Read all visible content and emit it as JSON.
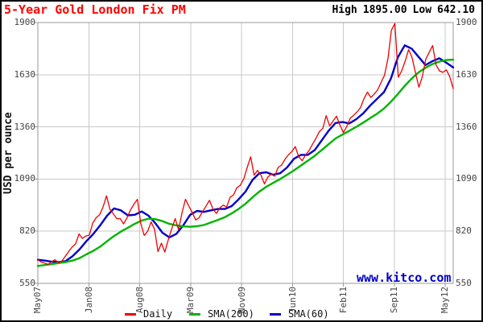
{
  "header": {
    "title": "5-Year Gold London Fix PM",
    "high_label": "High",
    "high_value": "1895.00",
    "low_label": "Low",
    "low_value": "642.10"
  },
  "watermark": "www.kitco.com",
  "colors": {
    "title": "#FF0000",
    "watermark": "#0000CC",
    "grid": "#C9C9C9",
    "frame": "#999999",
    "tick_text": "#444444",
    "stats_text": "#000000"
  },
  "chart_data": {
    "type": "line",
    "title": "5-Year Gold London Fix PM",
    "ylabel": "USD per ounce",
    "xlabel": "",
    "ylim": [
      550,
      1900
    ],
    "yticks": [
      1900,
      1630,
      1360,
      1090,
      820,
      550
    ],
    "xticklabels": [
      "May07",
      "Jan08",
      "Aug08",
      "Mar09",
      "Nov09",
      "Jun10",
      "Feb11",
      "Sep11",
      "May12"
    ],
    "grid": true,
    "legend_position": "bottom",
    "high": 1895.0,
    "low": 642.1,
    "series": [
      {
        "name": "Daily",
        "color": "#EE0000",
        "width": 1.3,
        "values": [
          672,
          660,
          655,
          648,
          662,
          672,
          658,
          666,
          690,
          715,
          738,
          754,
          806,
          783,
          795,
          800,
          862,
          890,
          905,
          945,
          1003,
          933,
          910,
          885,
          885,
          858,
          890,
          930,
          960,
          985,
          860,
          798,
          820,
          868,
          830,
          714,
          758,
          712,
          775,
          832,
          885,
          828,
          915,
          985,
          950,
          916,
          878,
          890,
          922,
          950,
          980,
          935,
          912,
          940,
          955,
          945,
          995,
          1008,
          1045,
          1058,
          1092,
          1150,
          1205,
          1110,
          1135,
          1110,
          1065,
          1100,
          1115,
          1105,
          1150,
          1162,
          1192,
          1215,
          1232,
          1258,
          1205,
          1185,
          1215,
          1237,
          1270,
          1300,
          1335,
          1352,
          1418,
          1365,
          1390,
          1415,
          1370,
          1330,
          1362,
          1405,
          1420,
          1438,
          1460,
          1505,
          1540,
          1512,
          1530,
          1552,
          1590,
          1628,
          1715,
          1860,
          1895,
          1617,
          1650,
          1700,
          1760,
          1720,
          1640,
          1565,
          1620,
          1710,
          1745,
          1781,
          1680,
          1650,
          1642,
          1655,
          1620,
          1558
        ]
      },
      {
        "name": "SMA(200)",
        "color": "#00B400",
        "width": 2.4,
        "values": [
          640,
          645,
          650,
          655,
          660,
          668,
          680,
          700,
          718,
          740,
          768,
          795,
          818,
          838,
          858,
          875,
          885,
          882,
          872,
          858,
          850,
          845,
          843,
          846,
          852,
          865,
          878,
          892,
          912,
          935,
          962,
          995,
          1025,
          1050,
          1070,
          1090,
          1112,
          1135,
          1160,
          1185,
          1210,
          1240,
          1270,
          1300,
          1320,
          1340,
          1360,
          1382,
          1405,
          1428,
          1455,
          1490,
          1530,
          1572,
          1610,
          1642,
          1666,
          1685,
          1698,
          1706,
          1708
        ]
      },
      {
        "name": "SMA(60)",
        "color": "#0000C8",
        "width": 2.4,
        "values": [
          672,
          668,
          662,
          660,
          665,
          690,
          725,
          768,
          805,
          850,
          900,
          938,
          928,
          902,
          905,
          922,
          900,
          860,
          812,
          788,
          806,
          850,
          905,
          925,
          920,
          928,
          935,
          935,
          950,
          985,
          1025,
          1085,
          1120,
          1125,
          1112,
          1120,
          1150,
          1195,
          1215,
          1215,
          1240,
          1290,
          1340,
          1380,
          1385,
          1378,
          1400,
          1430,
          1470,
          1505,
          1540,
          1610,
          1720,
          1782,
          1765,
          1722,
          1680,
          1700,
          1715,
          1692,
          1668
        ]
      }
    ]
  }
}
